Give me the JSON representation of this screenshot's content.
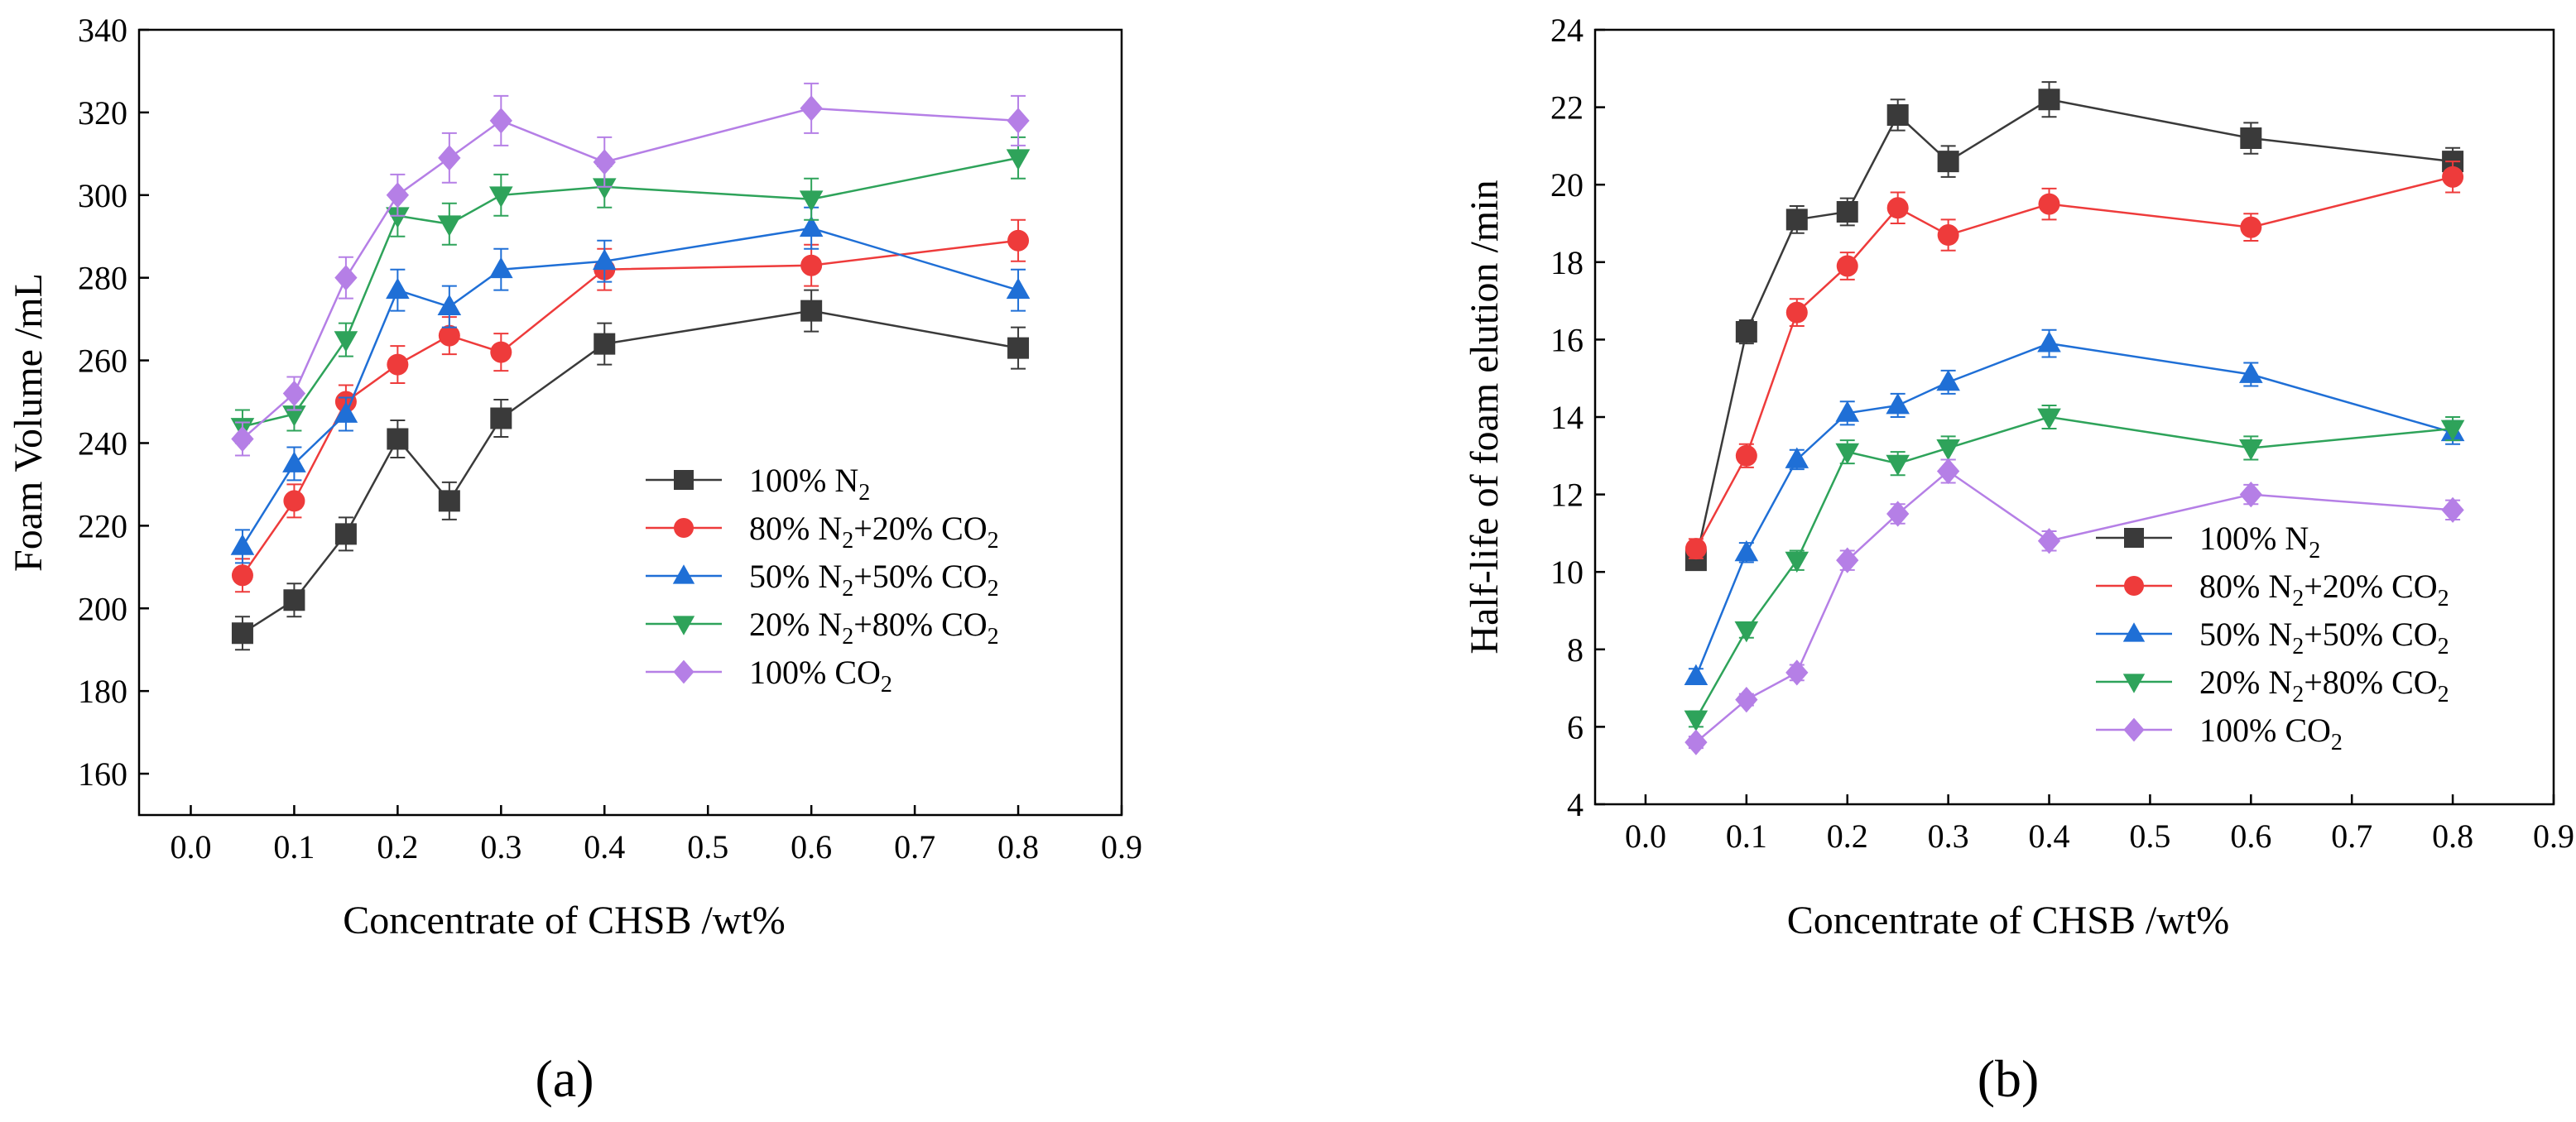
{
  "figure": {
    "panel_labels": [
      "(a)",
      "(b)"
    ]
  },
  "chart_data": [
    {
      "type": "line",
      "panel": "(a)",
      "xlabel": "Concentrate of CHSB /wt%",
      "ylabel": "Foam Volume /mL",
      "xlim": [
        -0.05,
        0.9
      ],
      "ylim": [
        150,
        340
      ],
      "xticks": [
        0.0,
        0.1,
        0.2,
        0.3,
        0.4,
        0.5,
        0.6,
        0.7,
        0.8,
        0.9
      ],
      "xtick_labels": [
        "0.0",
        "0.1",
        "0.2",
        "0.3",
        "0.4",
        "0.5",
        "0.6",
        "0.7",
        "0.8",
        "0.9"
      ],
      "yticks": [
        160,
        180,
        200,
        220,
        240,
        260,
        280,
        300,
        320,
        340
      ],
      "ytick_labels": [
        "160",
        "180",
        "200",
        "220",
        "240",
        "260",
        "280",
        "300",
        "320",
        "340"
      ],
      "x": [
        0.05,
        0.1,
        0.15,
        0.2,
        0.25,
        0.3,
        0.4,
        0.6,
        0.8
      ],
      "legend_position": "center-right",
      "series": [
        {
          "name": "100% N2",
          "label_parts": [
            [
              "100% N",
              false
            ],
            [
              "2",
              true
            ]
          ],
          "color": "#3a3a3a",
          "marker": "square",
          "values": [
            194,
            202,
            218,
            241,
            226,
            246,
            264,
            272,
            263
          ],
          "error": [
            4,
            4,
            4,
            4.5,
            4.5,
            4.5,
            5,
            5,
            5
          ]
        },
        {
          "name": "80% N2+20% CO2",
          "label_parts": [
            [
              "80% N",
              false
            ],
            [
              "2",
              true
            ],
            [
              "+20% CO",
              false
            ],
            [
              "2",
              true
            ]
          ],
          "color": "#ee3b3b",
          "marker": "circle",
          "values": [
            208,
            226,
            250,
            259,
            266,
            262,
            282,
            283,
            289
          ],
          "error": [
            4,
            4,
            4,
            4.5,
            4.5,
            4.5,
            5,
            5,
            5
          ]
        },
        {
          "name": "50% N2+50% CO2",
          "label_parts": [
            [
              "50% N",
              false
            ],
            [
              "2",
              true
            ],
            [
              "+50% CO",
              false
            ],
            [
              "2",
              true
            ]
          ],
          "color": "#1f6fd6",
          "marker": "triangle-up",
          "values": [
            215,
            235,
            247,
            277,
            273,
            282,
            284,
            292,
            277
          ],
          "error": [
            4,
            4,
            4,
            5,
            5,
            5,
            5,
            5,
            5
          ]
        },
        {
          "name": "20% N2+80% CO2",
          "label_parts": [
            [
              "20% N",
              false
            ],
            [
              "2",
              true
            ],
            [
              "+80% CO",
              false
            ],
            [
              "2",
              true
            ]
          ],
          "color": "#2ea35a",
          "marker": "triangle-down",
          "values": [
            244,
            247,
            265,
            295,
            293,
            300,
            302,
            299,
            309
          ],
          "error": [
            4,
            4,
            4,
            5,
            5,
            5,
            5,
            5,
            5
          ]
        },
        {
          "name": "100% CO2",
          "label_parts": [
            [
              "100% CO",
              false
            ],
            [
              "2",
              true
            ]
          ],
          "color": "#b57fe6",
          "marker": "diamond",
          "values": [
            241,
            252,
            280,
            300,
            309,
            318,
            308,
            321,
            318
          ],
          "error": [
            4,
            4,
            5,
            5,
            6,
            6,
            6,
            6,
            6
          ]
        }
      ]
    },
    {
      "type": "line",
      "panel": "(b)",
      "xlabel": "Concentrate of CHSB /wt%",
      "ylabel": "Half-life of foam elution /min",
      "xlim": [
        -0.05,
        0.9
      ],
      "ylim": [
        4,
        24
      ],
      "xticks": [
        0.0,
        0.1,
        0.2,
        0.3,
        0.4,
        0.5,
        0.6,
        0.7,
        0.8,
        0.9
      ],
      "xtick_labels": [
        "0.0",
        "0.1",
        "0.2",
        "0.3",
        "0.4",
        "0.5",
        "0.6",
        "0.7",
        "0.8",
        "0.9"
      ],
      "yticks": [
        4,
        6,
        8,
        10,
        12,
        14,
        16,
        18,
        20,
        22,
        24
      ],
      "ytick_labels": [
        "4",
        "6",
        "8",
        "10",
        "12",
        "14",
        "16",
        "18",
        "20",
        "22",
        "24"
      ],
      "x": [
        0.05,
        0.1,
        0.15,
        0.2,
        0.25,
        0.3,
        0.4,
        0.6,
        0.8
      ],
      "legend_position": "center-right",
      "series": [
        {
          "name": "100% N2",
          "label_parts": [
            [
              "100% N",
              false
            ],
            [
              "2",
              true
            ]
          ],
          "color": "#3a3a3a",
          "marker": "square",
          "values": [
            10.3,
            16.2,
            19.1,
            19.3,
            21.8,
            20.6,
            22.2,
            21.2,
            20.6
          ],
          "error": [
            0.25,
            0.3,
            0.35,
            0.35,
            0.4,
            0.4,
            0.45,
            0.4,
            0.35
          ]
        },
        {
          "name": "80% N2+20% CO2",
          "label_parts": [
            [
              "80% N",
              false
            ],
            [
              "2",
              true
            ],
            [
              "+20% CO",
              false
            ],
            [
              "2",
              true
            ]
          ],
          "color": "#ee3b3b",
          "marker": "circle",
          "values": [
            10.6,
            13.0,
            16.7,
            17.9,
            19.4,
            18.7,
            19.5,
            18.9,
            20.2
          ],
          "error": [
            0.25,
            0.3,
            0.35,
            0.35,
            0.4,
            0.4,
            0.4,
            0.35,
            0.4
          ]
        },
        {
          "name": "50% N2+50% CO2",
          "label_parts": [
            [
              "50% N",
              false
            ],
            [
              "2",
              true
            ],
            [
              "+50% CO",
              false
            ],
            [
              "2",
              true
            ]
          ],
          "color": "#1f6fd6",
          "marker": "triangle-up",
          "values": [
            7.3,
            10.5,
            12.9,
            14.1,
            14.3,
            14.9,
            15.9,
            15.1,
            13.6
          ],
          "error": [
            0.2,
            0.25,
            0.25,
            0.3,
            0.3,
            0.3,
            0.35,
            0.3,
            0.3
          ]
        },
        {
          "name": "20% N2+80% CO2",
          "label_parts": [
            [
              "20% N",
              false
            ],
            [
              "2",
              true
            ],
            [
              "+80% CO",
              false
            ],
            [
              "2",
              true
            ]
          ],
          "color": "#2ea35a",
          "marker": "triangle-down",
          "values": [
            6.2,
            8.5,
            10.3,
            13.1,
            12.8,
            13.2,
            14.0,
            13.2,
            13.7
          ],
          "error": [
            0.2,
            0.2,
            0.25,
            0.3,
            0.3,
            0.3,
            0.3,
            0.3,
            0.3
          ]
        },
        {
          "name": "100% CO2",
          "label_parts": [
            [
              "100% CO",
              false
            ],
            [
              "2",
              true
            ]
          ],
          "color": "#b57fe6",
          "marker": "diamond",
          "values": [
            5.6,
            6.7,
            7.4,
            10.3,
            11.5,
            12.6,
            10.8,
            12.0,
            11.6
          ],
          "error": [
            0.15,
            0.15,
            0.2,
            0.25,
            0.25,
            0.3,
            0.25,
            0.25,
            0.25
          ]
        }
      ]
    }
  ]
}
